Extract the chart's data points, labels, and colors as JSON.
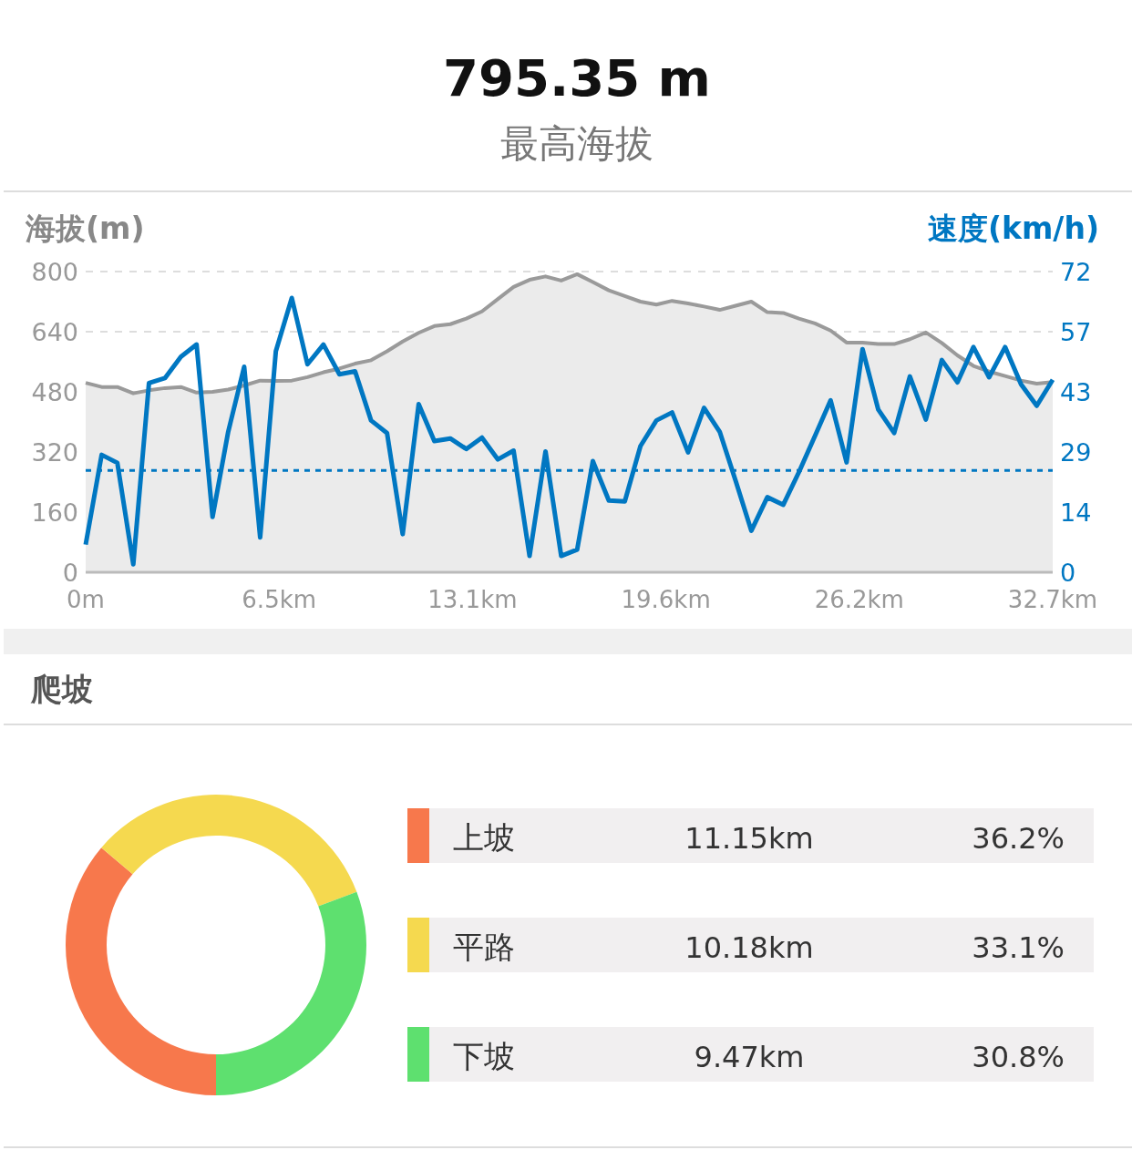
{
  "chart_data": [
    {
      "type": "line",
      "title": "795.35 m",
      "subtitle": "最高海拔",
      "ylabel": "海拔(m)",
      "y2label": "速度(km/h)",
      "x": [
        0,
        0.54,
        1.07,
        1.61,
        2.14,
        2.68,
        3.22,
        3.75,
        4.29,
        4.82,
        5.36,
        5.9,
        6.43,
        6.97,
        7.5,
        8.04,
        8.58,
        9.11,
        9.65,
        10.19,
        10.72,
        11.26,
        11.79,
        12.33,
        12.87,
        13.4,
        13.94,
        14.47,
        15.01,
        15.55,
        16.08,
        16.62,
        17.15,
        17.69,
        18.23,
        18.76,
        19.3,
        19.83,
        20.37,
        20.91,
        21.44,
        21.98,
        22.51,
        23.05,
        23.59,
        24.12,
        24.66,
        25.19,
        25.73,
        26.27,
        26.8,
        27.34,
        27.87,
        28.41,
        28.95,
        29.48,
        30.02,
        30.55,
        31.09,
        31.63,
        32.16,
        32.7
      ],
      "series": [
        {
          "type": "area",
          "color": "#9a9a9a",
          "values": [
            504,
            493,
            493,
            476,
            484,
            490,
            493,
            478,
            480,
            486,
            497,
            510,
            509,
            510,
            519,
            532,
            542,
            555,
            564,
            588,
            614,
            637,
            655,
            660,
            675,
            694,
            727,
            759,
            778,
            787,
            776,
            793,
            772,
            750,
            735,
            720,
            712,
            722,
            715,
            707,
            698,
            709,
            720,
            692,
            690,
            675,
            662,
            643,
            611,
            611,
            607,
            607,
            620,
            638,
            610,
            577,
            549,
            534,
            522,
            510,
            502,
            506
          ]
        },
        {
          "type": "line",
          "axis": "y2",
          "color": "#0077c2",
          "values": [
            6.6,
            28.0,
            26.1,
            1.9,
            45.1,
            46.3,
            51.4,
            54.3,
            13.2,
            33.5,
            49.0,
            8.3,
            52.7,
            65.4,
            49.6,
            54.3,
            47.2,
            47.9,
            36.2,
            33.2,
            9.1,
            40.1,
            31.3,
            31.9,
            29.4,
            32.1,
            26.9,
            29.0,
            3.9,
            28.8,
            3.9,
            5.4,
            26.5,
            17.1,
            16.9,
            30.1,
            36.2,
            38.1,
            28.6,
            39.2,
            33.5,
            21.8,
            9.9,
            17.9,
            16.1,
            23.9,
            32.5,
            41.0,
            26.2,
            53.2,
            38.8,
            33.2,
            46.7,
            36.4,
            50.6,
            45.3,
            53.7,
            46.5,
            53.7,
            44.8,
            39.7,
            45.9
          ]
        }
      ],
      "xlim": [
        0,
        32.7
      ],
      "xticks": [
        {
          "value": 0,
          "label": "0m"
        },
        {
          "value": 6.54,
          "label": "6.5km"
        },
        {
          "value": 13.08,
          "label": "13.1km"
        },
        {
          "value": 19.62,
          "label": "19.6km"
        },
        {
          "value": 26.16,
          "label": "26.2km"
        },
        {
          "value": 32.7,
          "label": "32.7km"
        }
      ],
      "ylim": [
        0,
        800
      ],
      "yticks": [
        0,
        160,
        320,
        480,
        640,
        800
      ],
      "y2lim": [
        0,
        71.7
      ],
      "y2ticks": [
        0,
        {
          "value": 14.34,
          "label": "14"
        },
        {
          "value": 28.68,
          "label": "29"
        },
        {
          "value": 43.02,
          "label": "43"
        },
        {
          "value": 57.36,
          "label": "57"
        },
        {
          "value": 71.7,
          "label": "72"
        }
      ],
      "ref_lines": [
        {
          "axis": "y2",
          "value": 24.3,
          "color": "#0077c2",
          "line_style": "dashed"
        }
      ],
      "grid": "y"
    },
    {
      "type": "donut",
      "title": "爬坡",
      "categories": [
        "上坡",
        "平路",
        "下坡"
      ],
      "values": [
        11.15,
        10.18,
        9.47
      ],
      "colors": [
        "#f7784c",
        "#f5d94f",
        "#5ee06f"
      ],
      "value_labels": [
        "11.15km",
        "10.18km",
        "9.47km"
      ],
      "annotations": [
        "36.2%",
        "33.1%",
        "30.8%"
      ],
      "legend": "right"
    }
  ]
}
